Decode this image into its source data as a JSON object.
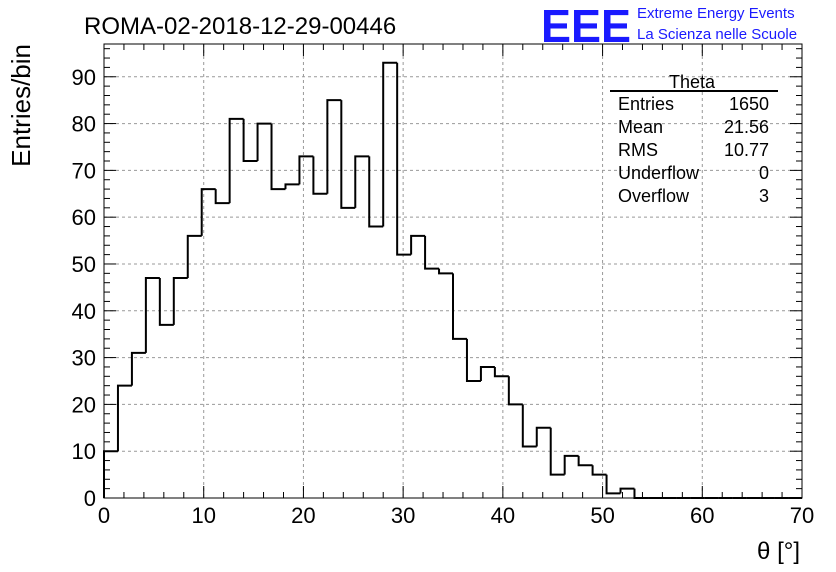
{
  "header": {
    "run_title": "ROMA-02-2018-12-29-00446",
    "logo_text": "EEE",
    "project_line1": "Extreme Energy Events",
    "project_line2": "La Scienza nelle Scuole",
    "logo_color": "#1a1aff"
  },
  "stats": {
    "title": "Theta",
    "rows": [
      {
        "label": "Entries",
        "value": "1650"
      },
      {
        "label": "Mean",
        "value": "21.56"
      },
      {
        "label": "RMS",
        "value": "10.77"
      },
      {
        "label": "Underflow",
        "value": "0"
      },
      {
        "label": "Overflow",
        "value": "3"
      }
    ]
  },
  "chart_data": {
    "type": "bar",
    "style": "step-histogram",
    "xlabel": "θ [°]",
    "ylabel": "Entries/bin",
    "xlim": [
      0,
      70
    ],
    "ylim": [
      0,
      97
    ],
    "bin_width": 1.4,
    "x_ticks": [
      0,
      10,
      20,
      30,
      40,
      50,
      60,
      70
    ],
    "y_ticks": [
      0,
      10,
      20,
      30,
      40,
      50,
      60,
      70,
      80,
      90
    ],
    "grid": true,
    "bin_edges": [
      0,
      1.4,
      2.8,
      4.2,
      5.6,
      7.0,
      8.4,
      9.8,
      11.2,
      12.6,
      14.0,
      15.4,
      16.8,
      18.2,
      19.6,
      21.0,
      22.4,
      23.8,
      25.2,
      26.6,
      28.0,
      29.4,
      30.8,
      32.2,
      33.6,
      35.0,
      36.4,
      37.8,
      39.2,
      40.6,
      42.0,
      43.4,
      44.8,
      46.2,
      47.6,
      49.0,
      50.4,
      51.8,
      53.2,
      54.6,
      56.0,
      57.4,
      58.8,
      60.2,
      61.6,
      63.0,
      64.4,
      65.8,
      67.2,
      68.6,
      70.0
    ],
    "values": [
      10,
      24,
      31,
      47,
      37,
      47,
      56,
      66,
      63,
      81,
      72,
      80,
      66,
      67,
      73,
      65,
      85,
      62,
      73,
      58,
      93,
      52,
      56,
      49,
      48,
      34,
      25,
      28,
      26,
      20,
      11,
      15,
      5,
      9,
      7,
      5,
      1,
      2,
      0,
      0,
      0,
      0,
      0,
      0,
      0,
      0,
      0,
      0,
      0,
      0
    ]
  }
}
